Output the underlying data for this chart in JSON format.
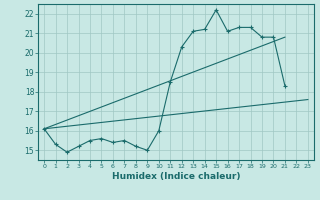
{
  "xlabel": "Humidex (Indice chaleur)",
  "xlim": [
    -0.5,
    23.5
  ],
  "ylim": [
    14.5,
    22.5
  ],
  "yticks": [
    15,
    16,
    17,
    18,
    19,
    20,
    21,
    22
  ],
  "xticks": [
    0,
    1,
    2,
    3,
    4,
    5,
    6,
    7,
    8,
    9,
    10,
    11,
    12,
    13,
    14,
    15,
    16,
    17,
    18,
    19,
    20,
    21,
    22,
    23
  ],
  "background_color": "#c8e8e4",
  "grid_color": "#a0c8c4",
  "line_color": "#1a6b6b",
  "series_main": {
    "x": [
      0,
      1,
      2,
      3,
      4,
      5,
      6,
      7,
      8,
      9,
      10,
      11,
      12,
      13,
      14,
      15,
      16,
      17,
      18,
      19,
      20,
      21
    ],
    "y": [
      16.1,
      15.3,
      14.9,
      15.2,
      15.5,
      15.6,
      15.4,
      15.5,
      15.2,
      15.0,
      16.0,
      18.5,
      20.3,
      21.1,
      21.2,
      22.2,
      21.1,
      21.3,
      21.3,
      20.8,
      20.8,
      18.3
    ]
  },
  "series_straight1": {
    "x": [
      0,
      23
    ],
    "y": [
      16.1,
      17.6
    ]
  },
  "series_straight2": {
    "x": [
      0,
      21
    ],
    "y": [
      16.1,
      20.8
    ]
  }
}
